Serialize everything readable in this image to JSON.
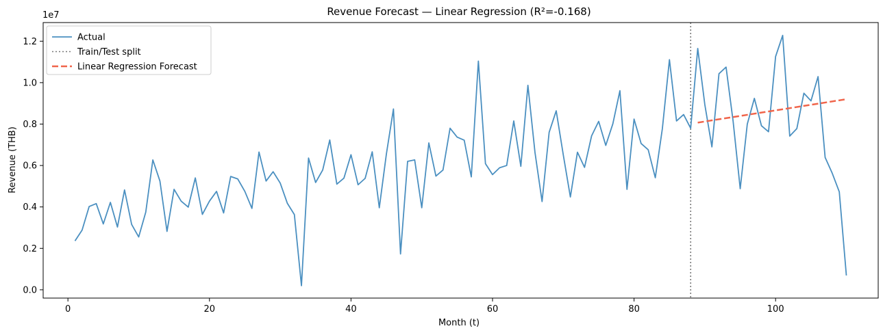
{
  "chart_data": {
    "type": "line",
    "title": "Revenue Forecast — Linear Regression (R²=-0.168)",
    "xlabel": "Month (t)",
    "ylabel": "Revenue (THB)",
    "y_scale_label": "1e7",
    "xlim": [
      -3.5,
      114.5
    ],
    "ylim": [
      -0.04,
      1.29
    ],
    "x_ticks": [
      0,
      20,
      40,
      60,
      80,
      100
    ],
    "x_tick_labels": [
      "0",
      "20",
      "40",
      "60",
      "80",
      "100"
    ],
    "y_ticks": [
      0,
      0.2,
      0.4,
      0.6,
      0.8,
      1.0,
      1.2
    ],
    "y_tick_labels": [
      "0.0",
      "0.2",
      "0.4",
      "0.6",
      "0.8",
      "1.0",
      "1.2"
    ],
    "grid": false,
    "legend_position": "top-left",
    "split_x": 88,
    "series": [
      {
        "name": "Actual",
        "color": "#4a8fc0",
        "style": "solid",
        "x_start": 1,
        "values": [
          0.236,
          0.288,
          0.402,
          0.416,
          0.318,
          0.422,
          0.303,
          0.482,
          0.316,
          0.255,
          0.375,
          0.627,
          0.525,
          0.282,
          0.485,
          0.428,
          0.399,
          0.54,
          0.364,
          0.428,
          0.475,
          0.371,
          0.547,
          0.535,
          0.475,
          0.393,
          0.665,
          0.525,
          0.57,
          0.515,
          0.418,
          0.363,
          0.02,
          0.636,
          0.518,
          0.578,
          0.723,
          0.51,
          0.539,
          0.652,
          0.507,
          0.538,
          0.666,
          0.396,
          0.655,
          0.873,
          0.173,
          0.62,
          0.627,
          0.396,
          0.709,
          0.549,
          0.578,
          0.78,
          0.737,
          0.722,
          0.545,
          1.104,
          0.609,
          0.556,
          0.589,
          0.6,
          0.815,
          0.596,
          0.987,
          0.663,
          0.426,
          0.76,
          0.864,
          0.651,
          0.448,
          0.664,
          0.591,
          0.743,
          0.813,
          0.697,
          0.801,
          0.961,
          0.485,
          0.824,
          0.706,
          0.676,
          0.541,
          0.778,
          1.111,
          0.815,
          0.846,
          0.78,
          1.165,
          0.894,
          0.69,
          1.043,
          1.075,
          0.813,
          0.488,
          0.8,
          0.924,
          0.792,
          0.763,
          1.126,
          1.228,
          0.742,
          0.778,
          0.949,
          0.912,
          1.029,
          0.639,
          0.563,
          0.473,
          0.069
        ]
      },
      {
        "name": "Linear Regression Forecast",
        "color": "#f0644a",
        "style": "dashed",
        "x": [
          89,
          110
        ],
        "values": [
          0.807,
          0.92
        ]
      }
    ],
    "reference_lines": [
      {
        "name": "Train/Test split",
        "x": 88,
        "color": "#777777",
        "style": "dotted"
      }
    ],
    "legend_entries": [
      "Actual",
      "Train/Test split",
      "Linear Regression Forecast"
    ]
  }
}
